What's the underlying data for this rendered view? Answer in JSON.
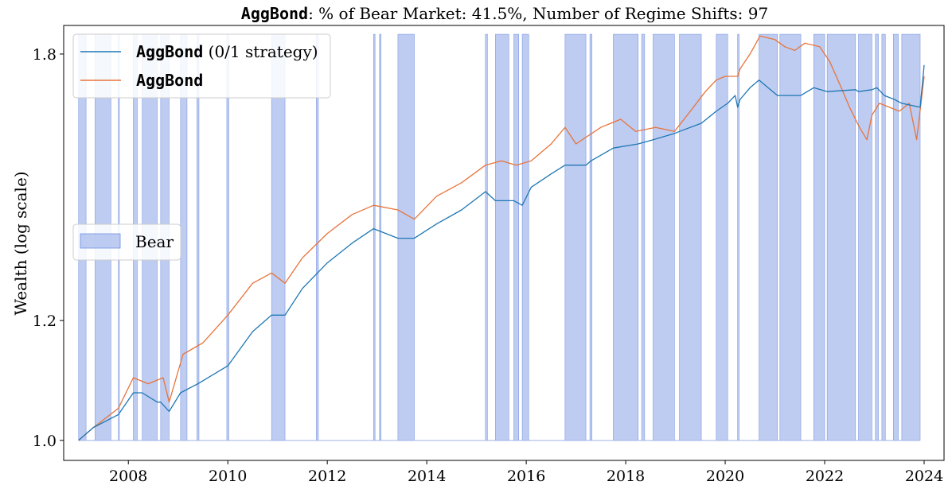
{
  "chart_data": {
    "type": "line",
    "title_ticker": "AggBond",
    "title_rest": ": % of Bear Market: 41.5%, Number of Regime Shifts: 97",
    "xlabel": "",
    "ylabel": "Wealth (log scale)",
    "x_range": [
      2006.7,
      2024.4
    ],
    "ylim": [
      0.97,
      1.88
    ],
    "log_scale_y": true,
    "grid": false,
    "x_ticks": [
      {
        "value": 2008,
        "label": "2008"
      },
      {
        "value": 2010,
        "label": "2010"
      },
      {
        "value": 2012,
        "label": "2012"
      },
      {
        "value": 2014,
        "label": "2014"
      },
      {
        "value": 2016,
        "label": "2016"
      },
      {
        "value": 2018,
        "label": "2018"
      },
      {
        "value": 2020,
        "label": "2020"
      },
      {
        "value": 2022,
        "label": "2022"
      },
      {
        "value": 2024,
        "label": "2024"
      }
    ],
    "y_ticks": [
      {
        "value": 1.0,
        "label": "1.0"
      },
      {
        "value": 1.2,
        "label": "1.2"
      },
      {
        "value": 1.8,
        "label": "1.8"
      }
    ],
    "legend_top": {
      "placement": "upper-left",
      "entries": [
        {
          "ticker": "AggBond",
          "suffix": " (0/1 strategy)",
          "color": "#1f77b4"
        },
        {
          "ticker": "AggBond",
          "suffix": "",
          "color": "#e8743b"
        }
      ]
    },
    "legend_bear": {
      "placement": "center-left",
      "label": "Bear",
      "color": "#aebfee"
    },
    "bear_periods": [
      [
        2007.0,
        2007.15
      ],
      [
        2007.33,
        2007.65
      ],
      [
        2007.8,
        2007.82
      ],
      [
        2008.1,
        2008.18
      ],
      [
        2008.28,
        2008.58
      ],
      [
        2008.65,
        2008.82
      ],
      [
        2009.05,
        2009.18
      ],
      [
        2009.38,
        2009.42
      ],
      [
        2009.98,
        2010.02
      ],
      [
        2010.88,
        2011.15
      ],
      [
        2011.78,
        2011.82
      ],
      [
        2012.93,
        2012.96
      ],
      [
        2013.05,
        2013.08
      ],
      [
        2013.42,
        2013.75
      ],
      [
        2015.18,
        2015.22
      ],
      [
        2015.38,
        2015.65
      ],
      [
        2015.75,
        2015.85
      ],
      [
        2015.92,
        2016.05
      ],
      [
        2016.78,
        2017.2
      ],
      [
        2017.28,
        2017.32
      ],
      [
        2017.75,
        2018.25
      ],
      [
        2018.32,
        2018.38
      ],
      [
        2018.55,
        2018.98
      ],
      [
        2019.08,
        2019.52
      ],
      [
        2019.82,
        2020.05
      ],
      [
        2020.25,
        2020.28
      ],
      [
        2020.68,
        2021.05
      ],
      [
        2021.1,
        2021.52
      ],
      [
        2021.78,
        2022.0
      ],
      [
        2022.05,
        2022.62
      ],
      [
        2022.68,
        2022.95
      ],
      [
        2023.02,
        2023.08
      ],
      [
        2023.15,
        2023.22
      ],
      [
        2023.38,
        2023.48
      ],
      [
        2023.55,
        2023.92
      ]
    ],
    "series": [
      {
        "name": "AggBond (0/1 strategy)",
        "color": "#1f77b4",
        "x": [
          2007.0,
          2007.3,
          2007.8,
          2008.1,
          2008.28,
          2008.58,
          2008.65,
          2008.82,
          2009.05,
          2009.4,
          2010.0,
          2010.5,
          2010.88,
          2011.15,
          2011.5,
          2012.0,
          2012.5,
          2012.93,
          2013.42,
          2013.75,
          2014.2,
          2014.7,
          2015.18,
          2015.38,
          2015.75,
          2015.92,
          2016.1,
          2016.5,
          2016.78,
          2017.2,
          2017.3,
          2017.75,
          2018.25,
          2018.55,
          2018.98,
          2019.08,
          2019.52,
          2019.82,
          2020.05,
          2020.2,
          2020.25,
          2020.3,
          2020.5,
          2020.68,
          2021.05,
          2021.1,
          2021.52,
          2021.78,
          2022.05,
          2022.62,
          2022.68,
          2022.95,
          2023.05,
          2023.2,
          2023.4,
          2023.55,
          2023.92,
          2024.0
        ],
        "y": [
          1.0,
          1.02,
          1.04,
          1.075,
          1.075,
          1.06,
          1.06,
          1.045,
          1.075,
          1.09,
          1.12,
          1.18,
          1.21,
          1.21,
          1.26,
          1.31,
          1.35,
          1.38,
          1.36,
          1.36,
          1.39,
          1.42,
          1.46,
          1.44,
          1.44,
          1.43,
          1.47,
          1.5,
          1.52,
          1.52,
          1.53,
          1.56,
          1.57,
          1.58,
          1.595,
          1.6,
          1.62,
          1.65,
          1.67,
          1.69,
          1.66,
          1.68,
          1.71,
          1.73,
          1.69,
          1.69,
          1.69,
          1.71,
          1.7,
          1.705,
          1.7,
          1.705,
          1.71,
          1.69,
          1.68,
          1.67,
          1.66,
          1.77
        ]
      },
      {
        "name": "AggBond",
        "color": "#e8743b",
        "x": [
          2007.0,
          2007.3,
          2007.8,
          2008.1,
          2008.4,
          2008.7,
          2008.82,
          2009.1,
          2009.5,
          2010.0,
          2010.5,
          2010.88,
          2011.15,
          2011.5,
          2012.0,
          2012.5,
          2012.93,
          2013.42,
          2013.75,
          2014.2,
          2014.7,
          2015.18,
          2015.5,
          2015.8,
          2016.1,
          2016.5,
          2016.78,
          2017.0,
          2017.5,
          2017.9,
          2018.2,
          2018.6,
          2018.98,
          2019.3,
          2019.6,
          2019.82,
          2020.0,
          2020.25,
          2020.3,
          2020.5,
          2020.7,
          2021.0,
          2021.2,
          2021.4,
          2021.6,
          2021.9,
          2022.1,
          2022.3,
          2022.5,
          2022.7,
          2022.85,
          2022.95,
          2023.1,
          2023.3,
          2023.5,
          2023.7,
          2023.85,
          2024.0
        ],
        "y": [
          1.0,
          1.02,
          1.05,
          1.1,
          1.09,
          1.1,
          1.06,
          1.14,
          1.16,
          1.21,
          1.27,
          1.29,
          1.27,
          1.32,
          1.37,
          1.41,
          1.43,
          1.42,
          1.4,
          1.45,
          1.48,
          1.52,
          1.53,
          1.52,
          1.53,
          1.57,
          1.61,
          1.57,
          1.61,
          1.63,
          1.6,
          1.61,
          1.6,
          1.65,
          1.7,
          1.73,
          1.74,
          1.74,
          1.76,
          1.8,
          1.85,
          1.84,
          1.82,
          1.81,
          1.83,
          1.82,
          1.78,
          1.72,
          1.66,
          1.61,
          1.58,
          1.64,
          1.67,
          1.66,
          1.65,
          1.67,
          1.58,
          1.74
        ]
      }
    ]
  }
}
